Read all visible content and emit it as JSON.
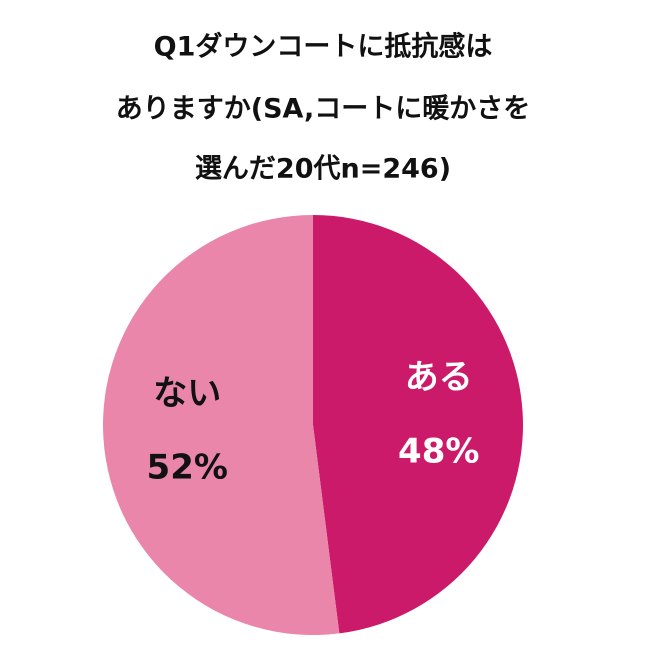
{
  "chart_data": {
    "type": "pie",
    "title": [
      "Q1ダウンコートに抵抗感は",
      "ありますか(SA,コートに暖かさを",
      "選んだ20代n=246)"
    ],
    "categories": [
      "ある",
      "ない"
    ],
    "values": [
      48,
      52
    ],
    "value_labels": [
      "48%",
      "52%"
    ],
    "colors": [
      "#cc1a6a",
      "#e986a9"
    ],
    "label_colors": [
      "#ffffff",
      "#111111"
    ]
  }
}
